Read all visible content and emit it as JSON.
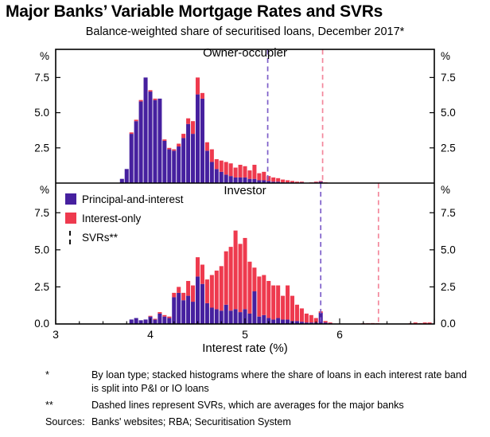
{
  "title": "Major Banks’ Variable Mortgage Rates and SVRs",
  "subtitle": "Balance-weighted share of securitised loans, December 2017*",
  "footnotes": [
    {
      "marker": "*",
      "text": "By loan type; stacked histograms where the share of loans in each interest rate band is split into P&I or IO loans"
    },
    {
      "marker": "**",
      "text": "Dashed lines represent SVRs, which are averages for the major banks"
    }
  ],
  "sources": {
    "label": "Sources:",
    "text": "Banks' websites; RBA; Securitisation System"
  },
  "chart_data": {
    "type": "bar",
    "variant": "stacked-histogram",
    "xlabel": "Interest rate (%)",
    "unit": "%",
    "xlim": [
      3,
      7
    ],
    "ylim": [
      0,
      9.5
    ],
    "xticks": [
      3,
      4,
      5,
      6
    ],
    "yticks": [
      0,
      2.5,
      5,
      7.5
    ],
    "bin_width": 0.05,
    "grid": false,
    "legend_position": "top-left of Investor panel",
    "series": [
      {
        "name": "Principal-and-interest",
        "color": "#46209f"
      },
      {
        "name": "Interest-only",
        "color": "#ee3a4e"
      }
    ],
    "svr_label": "SVRs**",
    "bars_format": [
      "interest_rate_pct",
      "principal_and_interest_share_pct",
      "interest_only_share_pct"
    ],
    "panels": [
      {
        "title": "Owner-occupier",
        "svr_lines": [
          {
            "name": "P&I SVR",
            "x": 5.24,
            "color": "#7d5ec9"
          },
          {
            "name": "IO SVR",
            "x": 5.82,
            "color": "#f3869b"
          }
        ],
        "bars": [
          [
            3.7,
            0.3,
            0
          ],
          [
            3.75,
            1.0,
            0
          ],
          [
            3.8,
            3.5,
            0.1
          ],
          [
            3.85,
            4.4,
            0.1
          ],
          [
            3.9,
            5.8,
            0.1
          ],
          [
            3.95,
            7.5,
            0
          ],
          [
            4.0,
            6.5,
            0.1
          ],
          [
            4.05,
            5.9,
            0.1
          ],
          [
            4.1,
            6.0,
            0
          ],
          [
            4.15,
            3.0,
            0.1
          ],
          [
            4.2,
            2.4,
            0.1
          ],
          [
            4.25,
            2.3,
            0.1
          ],
          [
            4.3,
            2.6,
            0.2
          ],
          [
            4.35,
            3.2,
            0.3
          ],
          [
            4.4,
            4.2,
            0.4
          ],
          [
            4.45,
            3.5,
            0.9
          ],
          [
            4.5,
            6.3,
            1.2
          ],
          [
            4.55,
            6.0,
            0.4
          ],
          [
            4.6,
            2.3,
            0.6
          ],
          [
            4.65,
            1.5,
            0.9
          ],
          [
            4.7,
            1.0,
            0.7
          ],
          [
            4.75,
            0.8,
            0.8
          ],
          [
            4.8,
            0.6,
            0.9
          ],
          [
            4.85,
            0.5,
            0.9
          ],
          [
            4.9,
            0.4,
            0.7
          ],
          [
            4.95,
            0.4,
            0.9
          ],
          [
            5.0,
            0.4,
            0.8
          ],
          [
            5.05,
            0.3,
            0.6
          ],
          [
            5.1,
            0.3,
            1.0
          ],
          [
            5.15,
            0.2,
            0.5
          ],
          [
            5.2,
            0.2,
            0.6
          ],
          [
            5.25,
            0.15,
            0.35
          ],
          [
            5.3,
            0.1,
            0.3
          ],
          [
            5.35,
            0.1,
            0.25
          ],
          [
            5.4,
            0.05,
            0.2
          ],
          [
            5.45,
            0.05,
            0.15
          ],
          [
            5.5,
            0.05,
            0.1
          ],
          [
            5.55,
            0,
            0.1
          ],
          [
            5.6,
            0.05,
            0.05
          ],
          [
            5.7,
            0,
            0.05
          ],
          [
            5.75,
            0.05,
            0.05
          ],
          [
            5.8,
            0.1,
            0.05
          ],
          [
            5.85,
            0,
            0.05
          ]
        ]
      },
      {
        "title": "Investor",
        "svr_lines": [
          {
            "name": "P&I SVR",
            "x": 5.8,
            "color": "#7d5ec9"
          },
          {
            "name": "IO SVR",
            "x": 6.41,
            "color": "#f3869b"
          }
        ],
        "bars": [
          [
            3.8,
            0.3,
            0
          ],
          [
            3.85,
            0.4,
            0
          ],
          [
            3.9,
            0.25,
            0
          ],
          [
            3.95,
            0.3,
            0
          ],
          [
            4.0,
            0.5,
            0.05
          ],
          [
            4.05,
            0.3,
            0.05
          ],
          [
            4.1,
            0.7,
            0.1
          ],
          [
            4.15,
            0.5,
            0.1
          ],
          [
            4.2,
            0.4,
            0.1
          ],
          [
            4.25,
            1.8,
            0.3
          ],
          [
            4.3,
            2.1,
            0.4
          ],
          [
            4.35,
            1.6,
            0.5
          ],
          [
            4.4,
            1.9,
            1.0
          ],
          [
            4.45,
            1.5,
            1.1
          ],
          [
            4.5,
            3.2,
            1.3
          ],
          [
            4.55,
            2.7,
            1.3
          ],
          [
            4.6,
            1.4,
            1.6
          ],
          [
            4.65,
            1.1,
            2.2
          ],
          [
            4.7,
            1.0,
            2.6
          ],
          [
            4.75,
            0.9,
            3.0
          ],
          [
            4.8,
            1.3,
            3.6
          ],
          [
            4.85,
            0.9,
            4.3
          ],
          [
            4.9,
            1.0,
            5.3
          ],
          [
            4.95,
            0.8,
            4.6
          ],
          [
            5.0,
            1.0,
            4.8
          ],
          [
            5.05,
            0.7,
            3.5
          ],
          [
            5.1,
            2.2,
            1.6
          ],
          [
            5.15,
            0.5,
            2.7
          ],
          [
            5.2,
            0.6,
            2.7
          ],
          [
            5.25,
            0.4,
            2.5
          ],
          [
            5.3,
            0.3,
            2.3
          ],
          [
            5.35,
            0.4,
            2.2
          ],
          [
            5.4,
            0.3,
            1.6
          ],
          [
            5.45,
            0.3,
            2.3
          ],
          [
            5.5,
            0.2,
            1.7
          ],
          [
            5.55,
            0.2,
            1.1
          ],
          [
            5.6,
            0.15,
            0.9
          ],
          [
            5.65,
            0.1,
            0.6
          ],
          [
            5.7,
            0.1,
            0.5
          ],
          [
            5.75,
            0.1,
            0.3
          ],
          [
            5.8,
            0.75,
            0.1
          ],
          [
            5.85,
            0.1,
            0.1
          ],
          [
            5.9,
            0.05,
            0.05
          ],
          [
            6.25,
            0,
            0.05
          ],
          [
            6.3,
            0,
            0.05
          ],
          [
            6.35,
            0,
            0.06
          ],
          [
            6.4,
            0,
            0.05
          ],
          [
            6.75,
            0,
            0.05
          ],
          [
            6.8,
            0,
            0.1
          ],
          [
            6.85,
            0,
            0.06
          ],
          [
            6.9,
            0,
            0.1
          ],
          [
            6.95,
            0,
            0.1
          ]
        ]
      }
    ]
  }
}
